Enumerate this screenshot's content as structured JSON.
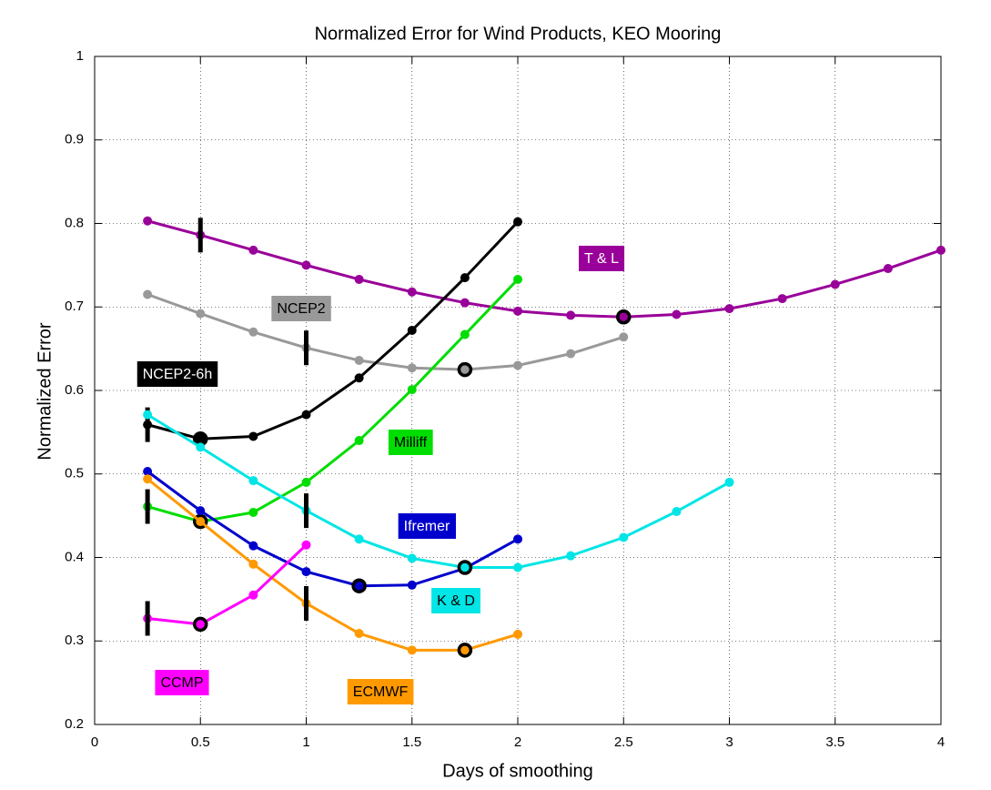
{
  "chart_data": {
    "type": "line",
    "title": "Normalized Error for Wind Products, KEO Mooring",
    "x_label": "Days of smoothing",
    "y_label": "Normalized Error",
    "xlim": [
      0,
      4
    ],
    "ylim": [
      0.2,
      1
    ],
    "xticks": [
      0,
      0.5,
      1,
      1.5,
      2,
      2.5,
      3,
      3.5,
      4
    ],
    "yticks": [
      0.2,
      0.3,
      0.4,
      0.5,
      0.6,
      0.7,
      0.8,
      0.9,
      1
    ],
    "grid": true,
    "series": [
      {
        "name": "T & L",
        "color": "#990099",
        "text_color": "#ffffff",
        "x": [
          0.25,
          0.5,
          0.75,
          1,
          1.25,
          1.5,
          1.75,
          2,
          2.25,
          2.5,
          2.75,
          3,
          3.25,
          3.5,
          3.75,
          4
        ],
        "values": [
          0.803,
          0.786,
          0.768,
          0.75,
          0.733,
          0.718,
          0.705,
          0.695,
          0.69,
          0.688,
          0.691,
          0.698,
          0.71,
          0.727,
          0.746,
          0.768
        ],
        "sig_at": 0.5,
        "circled_at": 2.5
      },
      {
        "name": "NCEP2",
        "color": "#999999",
        "text_color": "#000000",
        "x": [
          0.25,
          0.5,
          0.75,
          1,
          1.25,
          1.5,
          1.75,
          2,
          2.25,
          2.5
        ],
        "values": [
          0.715,
          0.692,
          0.67,
          0.651,
          0.636,
          0.627,
          0.625,
          0.63,
          0.644,
          0.664
        ],
        "sig_at": 1,
        "circled_at": 1.75
      },
      {
        "name": "NCEP2-6h",
        "color": "#000000",
        "text_color": "#ffffff",
        "x": [
          0.25,
          0.5,
          0.75,
          1,
          1.25,
          1.5,
          1.75,
          2
        ],
        "values": [
          0.559,
          0.542,
          0.545,
          0.571,
          0.615,
          0.672,
          0.735,
          0.802
        ],
        "sig_at": 0.25,
        "circled_at": 0.5
      },
      {
        "name": "Milliff",
        "color": "#00dd00",
        "text_color": "#000000",
        "x": [
          0.25,
          0.5,
          0.75,
          1,
          1.25,
          1.5,
          1.75,
          2
        ],
        "values": [
          0.461,
          0.443,
          0.454,
          0.49,
          0.54,
          0.601,
          0.667,
          0.733
        ],
        "sig_at": 0.25,
        "circled_at": 0.5
      },
      {
        "name": "Ifremer",
        "color": "#0000cc",
        "text_color": "#ffffff",
        "x": [
          0.25,
          0.5,
          0.75,
          1,
          1.25,
          1.5,
          1.75,
          2
        ],
        "values": [
          0.503,
          0.456,
          0.414,
          0.383,
          0.366,
          0.367,
          0.387,
          0.422
        ],
        "circled_at": 1.25
      },
      {
        "name": "K & D",
        "color": "#00e5e5",
        "text_color": "#000000",
        "x": [
          0.25,
          0.5,
          0.75,
          1,
          1.25,
          1.5,
          1.75,
          2,
          2.25,
          2.5,
          2.75,
          3
        ],
        "values": [
          0.571,
          0.532,
          0.492,
          0.456,
          0.422,
          0.399,
          0.388,
          0.388,
          0.402,
          0.424,
          0.455,
          0.49
        ],
        "sig_at": 1,
        "circled_at": 1.75
      },
      {
        "name": "ECMWF",
        "color": "#ff9900",
        "text_color": "#000000",
        "x": [
          0.25,
          0.5,
          0.75,
          1,
          1.25,
          1.5,
          1.75,
          2
        ],
        "values": [
          0.494,
          0.443,
          0.392,
          0.345,
          0.309,
          0.289,
          0.289,
          0.308
        ],
        "sig_at": 1,
        "circled_at": 1.75
      },
      {
        "name": "CCMP",
        "color": "#ff00ff",
        "text_color": "#000000",
        "x": [
          0.25,
          0.5,
          0.75,
          1
        ],
        "values": [
          0.327,
          0.32,
          0.355,
          0.415
        ],
        "sig_at": 0.25,
        "circled_at": 0.5
      }
    ]
  }
}
